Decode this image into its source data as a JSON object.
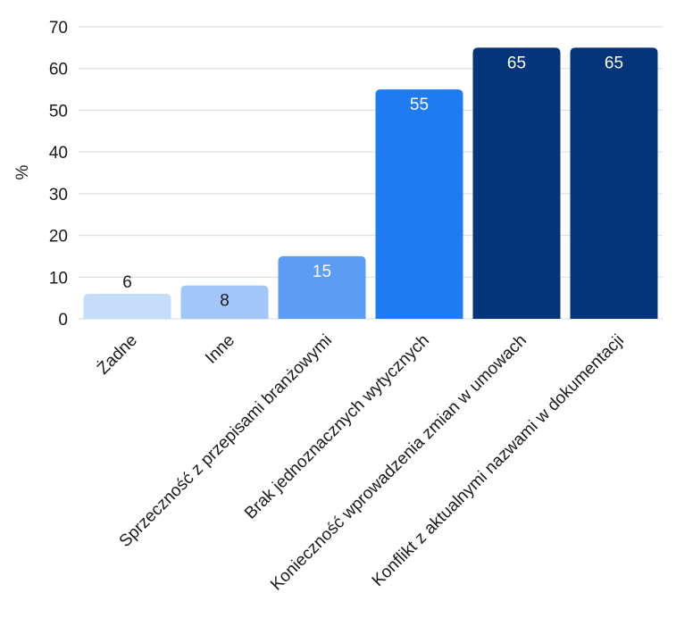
{
  "chart_data": {
    "type": "bar",
    "title": "",
    "xlabel": "",
    "ylabel": "%",
    "ylim": [
      0,
      70
    ],
    "yticks": [
      0,
      10,
      20,
      30,
      40,
      50,
      60,
      70
    ],
    "grid": true,
    "categories": [
      "Żadne",
      "Inne",
      "Sprzeczność z przepisami branżowymi",
      "Brak jednoznacznych wytycznych",
      "Konieczność wprowadzenia zmian w umowach",
      "Konflikt z aktualnymi nazwami w dokumentacji"
    ],
    "values": [
      6,
      8,
      15,
      55,
      65,
      65
    ],
    "colors": [
      "#c5dcfa",
      "#a2c6f7",
      "#5b9cf5",
      "#1f7bf2",
      "#04357a",
      "#04357a"
    ],
    "label_colors": [
      "#1a1a1a",
      "#1a1a1a",
      "#ffffff",
      "#ffffff",
      "#ffffff",
      "#ffffff"
    ]
  }
}
